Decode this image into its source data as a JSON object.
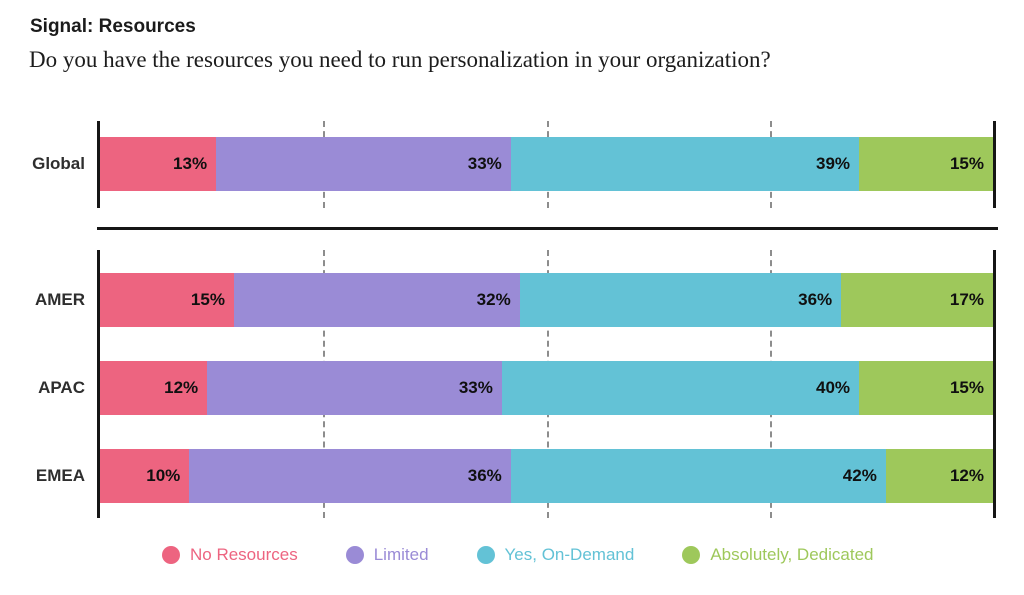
{
  "header": {
    "title": "Signal: Resources",
    "question": "Do you have the resources you need to run personalization in your organization?"
  },
  "chart_data": {
    "type": "bar",
    "variant": "horizontal-stacked",
    "value_suffix": "%",
    "xlim": [
      0,
      100
    ],
    "gridlines": [
      25,
      50,
      75
    ],
    "legend_position": "bottom",
    "categories": [
      "Global",
      "AMER",
      "APAC",
      "EMEA"
    ],
    "row_groups": [
      [
        0
      ],
      [
        1,
        2,
        3
      ]
    ],
    "series": [
      {
        "name": "No Resources",
        "color": "#ED6480",
        "values": [
          13,
          15,
          12,
          10
        ]
      },
      {
        "name": "Limited",
        "color": "#9A8BD6",
        "values": [
          33,
          32,
          33,
          36
        ]
      },
      {
        "name": "Yes, On-Demand",
        "color": "#63C2D6",
        "values": [
          39,
          36,
          40,
          42
        ]
      },
      {
        "name": "Absolutely, Dedicated",
        "color": "#9EC85B",
        "values": [
          15,
          17,
          15,
          12
        ]
      }
    ]
  }
}
